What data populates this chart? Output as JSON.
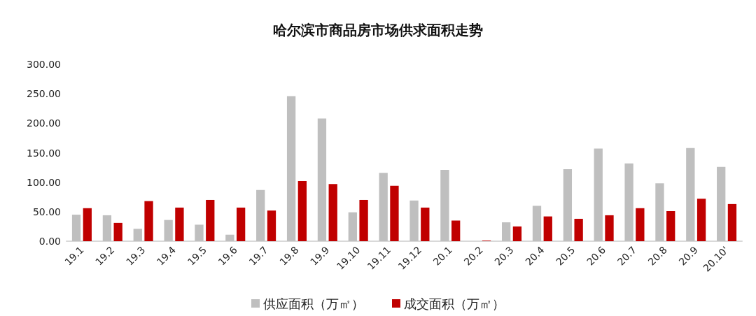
{
  "chart_data": {
    "type": "bar",
    "title": "哈尔滨市商品房市场供求面积走势",
    "categories": [
      "19.1",
      "19.2",
      "19.3",
      "19.4",
      "19.5",
      "19.6",
      "19.7",
      "19.8",
      "19.9",
      "19.10",
      "19.11",
      "19.12",
      "20.1",
      "20.2",
      "20.3",
      "20.4",
      "20.5",
      "20.6",
      "20.7",
      "20.8",
      "20.9",
      "20.10'"
    ],
    "series": [
      {
        "name": "供应面积（万㎡）",
        "color": "#bfbfbf",
        "values": [
          45,
          44,
          21,
          36,
          28,
          11,
          87,
          246,
          208,
          49,
          116,
          69,
          121,
          0,
          32,
          60,
          122,
          157,
          132,
          98,
          158,
          126
        ]
      },
      {
        "name": "成交面积（万㎡）",
        "color": "#c00000",
        "values": [
          56,
          31,
          68,
          57,
          70,
          57,
          52,
          102,
          97,
          70,
          94,
          57,
          35,
          1,
          25,
          42,
          38,
          44,
          56,
          51,
          72,
          63
        ]
      }
    ],
    "ylim": [
      0,
      300
    ],
    "yticks": [
      {
        "value": 0,
        "label": "0.00"
      },
      {
        "value": 50,
        "label": "50.00"
      },
      {
        "value": 100,
        "label": "100.00"
      },
      {
        "value": 150,
        "label": "150.00"
      },
      {
        "value": 200,
        "label": "200.00"
      },
      {
        "value": 250,
        "label": "250.00"
      },
      {
        "value": 300,
        "label": "300.00"
      }
    ],
    "grid": false,
    "legend": "bottom"
  }
}
